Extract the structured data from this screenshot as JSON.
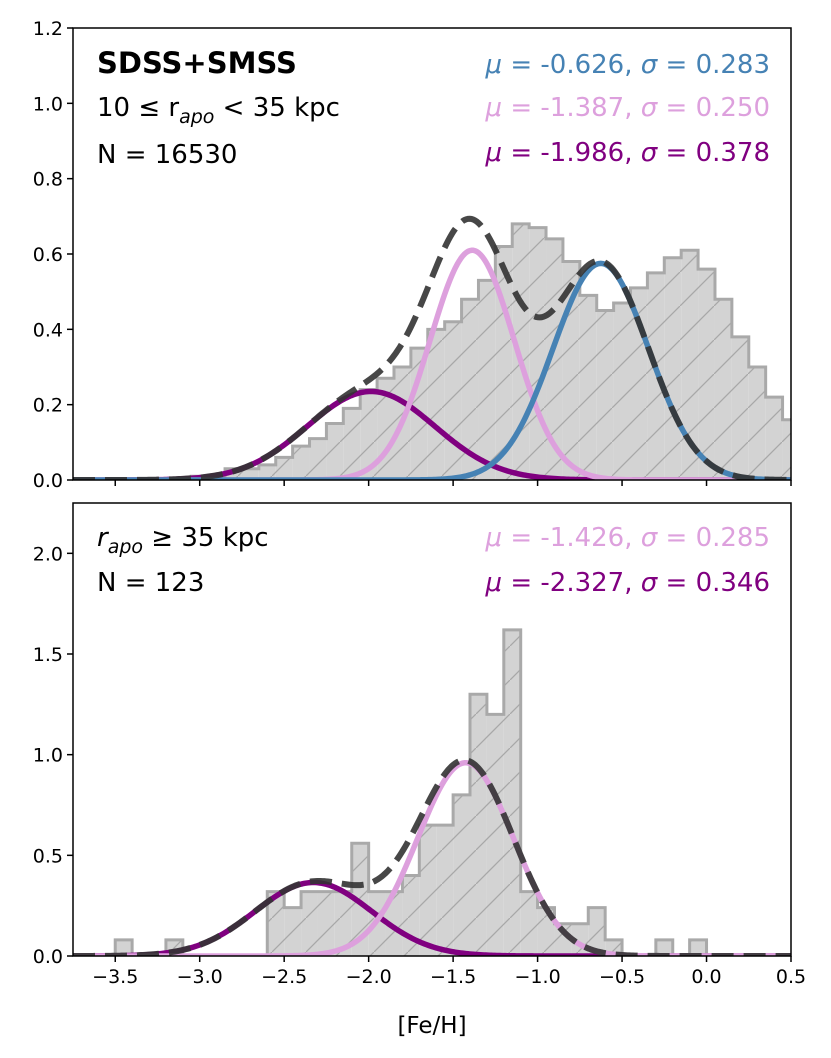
{
  "chart_data": [
    {
      "type": "histogram",
      "panel": "top",
      "title": "SDSS+SMSS",
      "range_label": {
        "pre": "10 ≤ r",
        "sub": "apo",
        "post": " < 35 kpc"
      },
      "count_label": "N = 16530",
      "xlim": [
        -3.75,
        0.5
      ],
      "ylim": [
        0,
        1.2
      ],
      "yticks": [
        "0.0",
        "0.2",
        "0.4",
        "0.6",
        "0.8",
        "1.0",
        "1.2"
      ],
      "ytick_values": [
        0,
        0.2,
        0.4,
        0.6,
        0.8,
        1.0,
        1.2
      ],
      "bin_width": 0.1,
      "histogram": {
        "bin_edges_start": -3.05,
        "values": [
          0.01,
          0.01,
          0.03,
          0.03,
          0.04,
          0.06,
          0.09,
          0.11,
          0.15,
          0.19,
          0.24,
          0.27,
          0.3,
          0.35,
          0.4,
          0.42,
          0.48,
          0.53,
          0.62,
          0.68,
          0.67,
          0.64,
          0.58,
          0.49,
          0.45,
          0.47,
          0.51,
          0.55,
          0.59,
          0.61,
          0.56,
          0.48,
          0.38,
          0.3,
          0.22,
          0.16,
          0.09,
          0.05,
          0.02,
          0.005
        ]
      },
      "components": [
        {
          "name": "metal-rich",
          "mu": -0.626,
          "sigma": 0.283,
          "amplitude": 0.575,
          "color": "#4682b4",
          "label": "μ = -0.626, σ = 0.283",
          "mu_text": "-0.626",
          "sigma_text": "0.283"
        },
        {
          "name": "intermediate",
          "mu": -1.387,
          "sigma": 0.25,
          "amplitude": 0.61,
          "color": "#dda0dd",
          "label": "μ = -1.387, σ = 0.250",
          "mu_text": "-1.387",
          "sigma_text": "0.250"
        },
        {
          "name": "metal-poor",
          "mu": -1.986,
          "sigma": 0.378,
          "amplitude": 0.235,
          "color": "#800080",
          "label": "μ = -1.986, σ = 0.378",
          "mu_text": "-1.986",
          "sigma_text": "0.378"
        }
      ],
      "total_color": "#333333"
    },
    {
      "type": "histogram",
      "panel": "bottom",
      "range_label": {
        "pre": "r",
        "sub": "apo",
        "post": " ≥ 35 kpc"
      },
      "count_label": "N = 123",
      "xlim": [
        -3.75,
        0.5
      ],
      "ylim": [
        0,
        2.25
      ],
      "yticks": [
        "0.0",
        "0.5",
        "1.0",
        "1.5",
        "2.0"
      ],
      "ytick_values": [
        0,
        0.5,
        1.0,
        1.5,
        2.0
      ],
      "xlabel": "[Fe/H]",
      "xticks": [
        "−3.5",
        "−3.0",
        "−2.5",
        "−2.0",
        "−1.5",
        "−1.0",
        "−0.5",
        "0.0",
        "0.5"
      ],
      "xtick_values": [
        -3.5,
        -3.0,
        -2.5,
        -2.0,
        -1.5,
        -1.0,
        -0.5,
        0.0,
        0.5
      ],
      "bin_width": 0.1,
      "histogram": {
        "bin_edges_start": -3.5,
        "values": [
          0.08,
          0,
          0,
          0.08,
          0,
          0,
          0,
          0,
          0,
          0.32,
          0.24,
          0.32,
          0.32,
          0.32,
          0.56,
          0.32,
          0.32,
          0.4,
          0.65,
          0.65,
          0.8,
          1.3,
          1.2,
          1.62,
          0.32,
          0.24,
          0.16,
          0.16,
          0.24,
          0.08,
          0,
          0,
          0.08,
          0,
          0.08
        ]
      },
      "components": [
        {
          "name": "intermediate",
          "mu": -1.426,
          "sigma": 0.285,
          "amplitude": 0.96,
          "color": "#dda0dd",
          "label": "μ = -1.426, σ = 0.285",
          "mu_text": "-1.426",
          "sigma_text": "0.285"
        },
        {
          "name": "metal-poor",
          "mu": -2.327,
          "sigma": 0.346,
          "amplitude": 0.365,
          "color": "#800080",
          "label": "μ = -2.327, σ = 0.346",
          "mu_text": "-2.327",
          "sigma_text": "0.346"
        }
      ],
      "total_color": "#333333"
    }
  ]
}
